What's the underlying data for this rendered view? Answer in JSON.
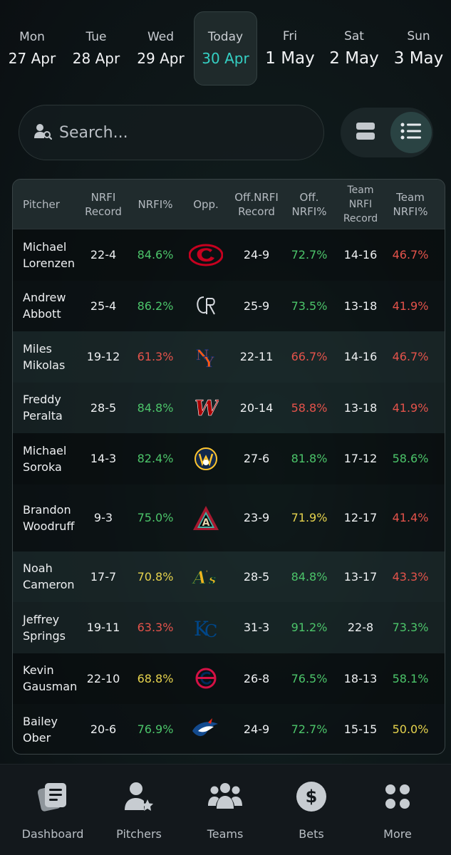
{
  "dates": [
    {
      "dow": "Mon",
      "date": "27 Apr",
      "active": false
    },
    {
      "dow": "Tue",
      "date": "28 Apr",
      "active": false
    },
    {
      "dow": "Wed",
      "date": "29 Apr",
      "active": false
    },
    {
      "dow": "Today",
      "date": "30 Apr",
      "active": true
    },
    {
      "dow": "Fri",
      "date": "1 May",
      "active": false
    },
    {
      "dow": "Sat",
      "date": "2 May",
      "active": false
    },
    {
      "dow": "Sun",
      "date": "3 May",
      "active": false
    }
  ],
  "search": {
    "placeholder": "Search..."
  },
  "table": {
    "headers": {
      "pitcher": "Pitcher",
      "nrfi_record": "NRFI Record",
      "nrfi_pct": "NRFI%",
      "opp": "Opp.",
      "off_record": "Off.NRFI Record",
      "off_pct": "Off. NRFI%",
      "team_record": "Team NRFI Record",
      "team_pct": "Team NRFI%"
    },
    "rows": [
      {
        "first": "Michael",
        "last": "Lorenzen",
        "rec": "22-4",
        "pct": "84.6%",
        "pct_c": "green",
        "opp": "cincinnati-reds-logo",
        "off_rec": "24-9",
        "off_pct": "72.7%",
        "off_c": "green",
        "team_rec": "14-16",
        "team_pct": "46.7%",
        "team_c": "red"
      },
      {
        "first": "Andrew",
        "last": "Abbott",
        "rec": "25-4",
        "pct": "86.2%",
        "pct_c": "green",
        "opp": "colorado-rockies-logo",
        "off_rec": "25-9",
        "off_pct": "73.5%",
        "off_c": "green",
        "team_rec": "13-18",
        "team_pct": "41.9%",
        "team_c": "red"
      },
      {
        "first": "Miles",
        "last": "Mikolas",
        "rec": "19-12",
        "pct": "61.3%",
        "pct_c": "red",
        "opp": "new-york-mets-logo",
        "off_rec": "22-11",
        "off_pct": "66.7%",
        "off_c": "red",
        "team_rec": "14-16",
        "team_pct": "46.7%",
        "team_c": "red"
      },
      {
        "first": "Freddy",
        "last": "Peralta",
        "rec": "28-5",
        "pct": "84.8%",
        "pct_c": "green",
        "opp": "washington-nationals-logo",
        "off_rec": "20-14",
        "off_pct": "58.8%",
        "off_c": "red",
        "team_rec": "13-18",
        "team_pct": "41.9%",
        "team_c": "red"
      },
      {
        "first": "Michael",
        "last": "Soroka",
        "rec": "14-3",
        "pct": "82.4%",
        "pct_c": "green",
        "opp": "milwaukee-brewers-logo",
        "off_rec": "27-6",
        "off_pct": "81.8%",
        "off_c": "green",
        "team_rec": "17-12",
        "team_pct": "58.6%",
        "team_c": "green"
      },
      {
        "first": "Brandon",
        "last": "Woodruff",
        "rec": "9-3",
        "pct": "75.0%",
        "pct_c": "green",
        "opp": "arizona-diamondbacks-logo",
        "off_rec": "23-9",
        "off_pct": "71.9%",
        "off_c": "yellow",
        "team_rec": "12-17",
        "team_pct": "41.4%",
        "team_c": "red"
      },
      {
        "first": "Noah",
        "last": "Cameron",
        "rec": "17-7",
        "pct": "70.8%",
        "pct_c": "yellow",
        "opp": "oakland-athletics-logo",
        "off_rec": "28-5",
        "off_pct": "84.8%",
        "off_c": "green",
        "team_rec": "13-17",
        "team_pct": "43.3%",
        "team_c": "red"
      },
      {
        "first": "Jeffrey",
        "last": "Springs",
        "rec": "19-11",
        "pct": "63.3%",
        "pct_c": "red",
        "opp": "kansas-city-royals-logo",
        "off_rec": "31-3",
        "off_pct": "91.2%",
        "off_c": "green",
        "team_rec": "22-8",
        "team_pct": "73.3%",
        "team_c": "green"
      },
      {
        "first": "Kevin",
        "last": "Gausman",
        "rec": "22-10",
        "pct": "68.8%",
        "pct_c": "yellow",
        "opp": "minnesota-twins-logo",
        "off_rec": "26-8",
        "off_pct": "76.5%",
        "off_c": "green",
        "team_rec": "18-13",
        "team_pct": "58.1%",
        "team_c": "green"
      },
      {
        "first": "Bailey",
        "last": "Ober",
        "rec": "20-6",
        "pct": "76.9%",
        "pct_c": "green",
        "opp": "toronto-blue-jays-logo",
        "off_rec": "24-9",
        "off_pct": "72.7%",
        "off_c": "green",
        "team_rec": "15-15",
        "team_pct": "50.0%",
        "team_c": "yellow"
      }
    ]
  },
  "nav": [
    {
      "label": "Dashboard",
      "icon": "dashboard-icon"
    },
    {
      "label": "Pitchers",
      "icon": "pitchers-icon"
    },
    {
      "label": "Teams",
      "icon": "teams-icon"
    },
    {
      "label": "Bets",
      "icon": "bets-icon"
    },
    {
      "label": "More",
      "icon": "more-icon"
    }
  ]
}
